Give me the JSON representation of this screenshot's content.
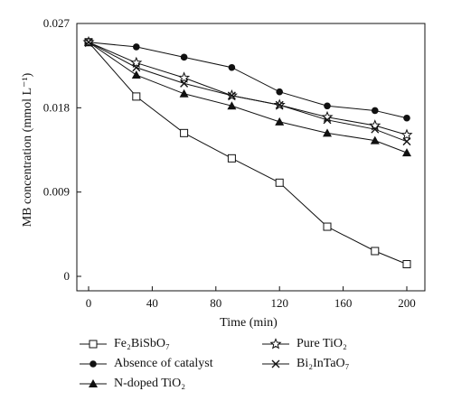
{
  "chart_data": {
    "type": "line",
    "title": "",
    "xlabel": "Time (min)",
    "ylabel": "MB concentration (mmol L⁻¹)",
    "xlim": [
      0,
      200
    ],
    "ylim": [
      0,
      0.027
    ],
    "xticks": [
      0,
      40,
      80,
      120,
      160,
      200
    ],
    "yticks": [
      0,
      0.009,
      0.018,
      0.027
    ],
    "ytick_labels": [
      "0",
      "0.009",
      "0.018",
      "0.027"
    ],
    "grid": false,
    "legend_position": "bottom",
    "series": [
      {
        "name": "Fe₂BiSbO₇",
        "marker": "open-square",
        "x": [
          0,
          30,
          60,
          90,
          120,
          150,
          180,
          200
        ],
        "y": [
          0.025,
          0.0192,
          0.0153,
          0.0126,
          0.01,
          0.0053,
          0.0027,
          0.0013
        ]
      },
      {
        "name": "Absence of catalyst",
        "marker": "filled-circle",
        "x": [
          0,
          30,
          60,
          90,
          120,
          150,
          180,
          200
        ],
        "y": [
          0.025,
          0.0245,
          0.0234,
          0.0223,
          0.0197,
          0.0182,
          0.0177,
          0.0169
        ]
      },
      {
        "name": "N-doped TiO₂",
        "marker": "filled-triangle",
        "x": [
          0,
          30,
          60,
          90,
          120,
          150,
          180,
          200
        ],
        "y": [
          0.025,
          0.0215,
          0.0195,
          0.0182,
          0.0165,
          0.0153,
          0.0145,
          0.0132
        ]
      },
      {
        "name": "Pure TiO₂",
        "marker": "open-star",
        "x": [
          0,
          30,
          60,
          90,
          120,
          150,
          180,
          200
        ],
        "y": [
          0.025,
          0.0228,
          0.0212,
          0.0193,
          0.0183,
          0.017,
          0.0161,
          0.0151
        ]
      },
      {
        "name": "Bi₂InTaO₇",
        "marker": "cross",
        "x": [
          0,
          30,
          60,
          90,
          120,
          150,
          180,
          200
        ],
        "y": [
          0.025,
          0.0223,
          0.0206,
          0.0193,
          0.0183,
          0.0167,
          0.0157,
          0.0144
        ]
      }
    ]
  }
}
